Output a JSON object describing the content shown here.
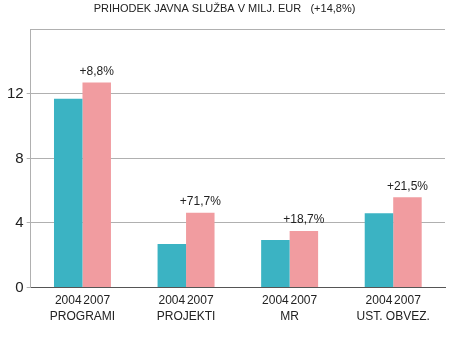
{
  "chart_data": {
    "type": "bar",
    "title": "PRIHODEK JAVNA SLUŽBA V MILJ. EUR   (+14,8%)",
    "categories": [
      "PROGRAMI",
      "PROJEKTI",
      "MR",
      "UST. OBVEZ."
    ],
    "series": [
      {
        "name": "2004",
        "color": "#3bb3c3",
        "values": [
          11.7,
          2.7,
          2.95,
          4.6
        ]
      },
      {
        "name": "2007",
        "color": "#f19ca0",
        "values": [
          12.7,
          4.64,
          3.5,
          5.59
        ]
      }
    ],
    "annotations": [
      {
        "category": "PROGRAMI",
        "series": "2007",
        "text": "+8,8%"
      },
      {
        "category": "PROJEKTI",
        "series": "2007",
        "text": "+71,7%"
      },
      {
        "category": "MR",
        "series": "2007",
        "text": "+18,7%"
      },
      {
        "category": "UST. OBVEZ.",
        "series": "2007",
        "text": "+21,5%"
      }
    ],
    "ylim": [
      0,
      16
    ],
    "yticks": [
      0,
      4,
      8,
      12
    ],
    "grid": true
  }
}
